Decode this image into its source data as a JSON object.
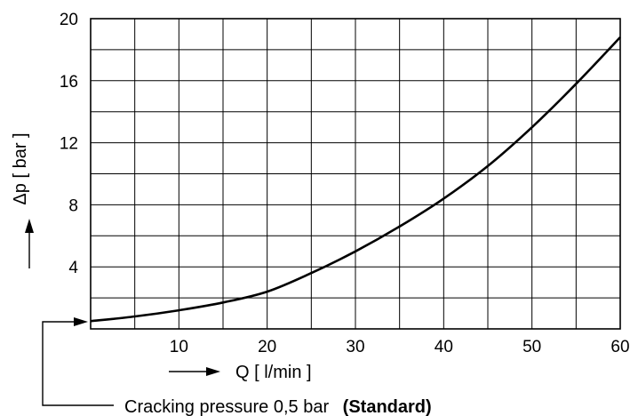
{
  "chart_data": {
    "type": "line",
    "title": "",
    "xlabel": "Q [ l/min ]",
    "ylabel": "Δp [ bar ]",
    "xlim": [
      0,
      60
    ],
    "ylim": [
      0,
      20
    ],
    "x_ticks": [
      10,
      20,
      30,
      40,
      50,
      60
    ],
    "y_ticks": [
      4,
      8,
      12,
      16,
      20
    ],
    "grid": true,
    "series": [
      {
        "x": [
          0,
          5,
          10,
          15,
          20,
          25,
          30,
          35,
          40,
          45,
          50,
          55,
          60
        ],
        "values": [
          0.5,
          0.8,
          1.2,
          1.7,
          2.4,
          3.6,
          5.0,
          6.6,
          8.4,
          10.5,
          13.0,
          15.8,
          18.8
        ]
      }
    ],
    "annotation": {
      "text": "Cracking pressure 0,5 bar",
      "emphasis": "(Standard)"
    }
  }
}
